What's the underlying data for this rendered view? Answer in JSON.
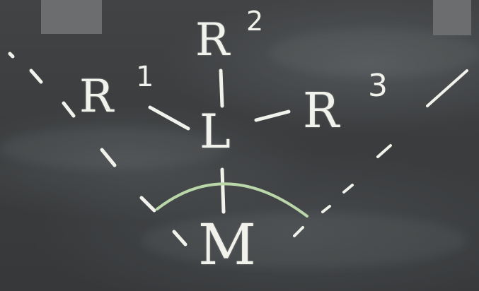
{
  "labels": {
    "r1": "R",
    "r1_sup": "1",
    "r2": "R",
    "r2_sup": "2",
    "r3": "R",
    "r3_sup": "3",
    "ligand": "L",
    "metal": "M"
  },
  "colors": {
    "chalk": "#f2f2ec",
    "arc": "#b9d7a8",
    "board": "#3b3d3f"
  }
}
